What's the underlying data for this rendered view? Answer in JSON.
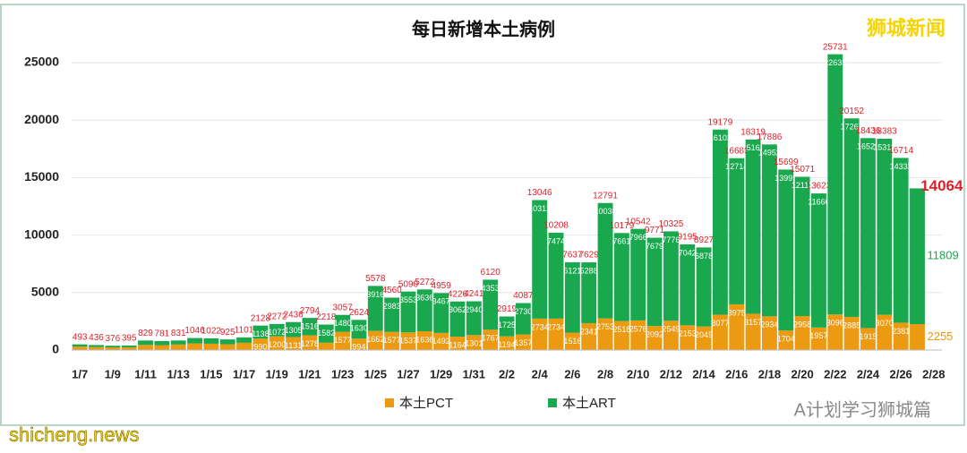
{
  "chart_data": {
    "type": "stacked_bar",
    "title": "每日新增本土病例",
    "categories": [
      "1/7",
      null,
      "1/9",
      null,
      "1/11",
      null,
      "1/13",
      null,
      "1/15",
      null,
      "1/17",
      null,
      "1/19",
      null,
      "1/21",
      null,
      "1/23",
      null,
      "1/25",
      null,
      "1/27",
      null,
      "1/29",
      null,
      "1/31",
      null,
      "2/2",
      null,
      "2/4",
      null,
      "2/6",
      null,
      "2/8",
      null,
      "2/10",
      null,
      "2/12",
      null,
      "2/14",
      null,
      "2/16",
      null,
      "2/18",
      null,
      "2/20",
      null,
      "2/22",
      null,
      "2/24",
      null,
      "2/26",
      null,
      "2/28"
    ],
    "series": [
      {
        "name": "本土PCT",
        "color": "#ec9a12",
        "values": [
          300,
          260,
          230,
          240,
          446,
          426,
          481,
          582,
          552,
          499,
          631,
          990,
          1200,
          1131,
          1278,
          636,
          1577,
          994,
          1662,
          1577,
          1537,
          1636,
          1492,
          1164,
          1301,
          1767,
          1194,
          1357,
          2734,
          2734,
          1516,
          2341,
          2753,
          2518,
          2576,
          2092,
          2549,
          2153,
          2049,
          3077,
          3975,
          3157,
          2934,
          1704,
          2958,
          1957,
          3096,
          2885,
          1915,
          3070,
          2381,
          2255,
          null
        ]
      },
      {
        "name": "本土ART",
        "color": "#19a84e",
        "values": [
          193,
          176,
          146,
          155,
          383,
          355,
          350,
          464,
          470,
          426,
          470,
          1138,
          1072,
          1305,
          1516,
          1582,
          1480,
          1630,
          3916,
          2983,
          3553,
          3636,
          3467,
          3062,
          2940,
          4353,
          1725,
          2730,
          10312,
          7474,
          6121,
          5288,
          10038,
          7661,
          7966,
          7679,
          7776,
          7042,
          6878,
          16102,
          12714,
          15162,
          14952,
          13995,
          12113,
          11666,
          22635,
          17267,
          16521,
          15313,
          14333,
          11809,
          null
        ]
      }
    ],
    "totals": [
      493,
      436,
      376,
      395,
      829,
      781,
      831,
      1046,
      1022,
      925,
      1101,
      2128,
      2272,
      2436,
      2794,
      2218,
      3057,
      2624,
      5578,
      4560,
      5090,
      5272,
      4959,
      4226,
      4241,
      6120,
      2919,
      4087,
      13046,
      10208,
      7637,
      7629,
      12791,
      10179,
      10542,
      9771,
      10325,
      9195,
      8927,
      19179,
      16689,
      18319,
      17886,
      15699,
      15071,
      13623,
      25731,
      20152,
      18436,
      18383,
      16714,
      14064,
      null
    ],
    "total_color": "#e0202a",
    "ylim": [
      0,
      25000
    ],
    "yticks": [
      0,
      5000,
      10000,
      15000,
      20000,
      25000
    ],
    "grid": true,
    "legend": "bottom"
  },
  "watermarks": {
    "top_right": "狮城新闻",
    "bottom_right": "A计划学习狮城篇",
    "bottom_left": "shicheng.news"
  }
}
